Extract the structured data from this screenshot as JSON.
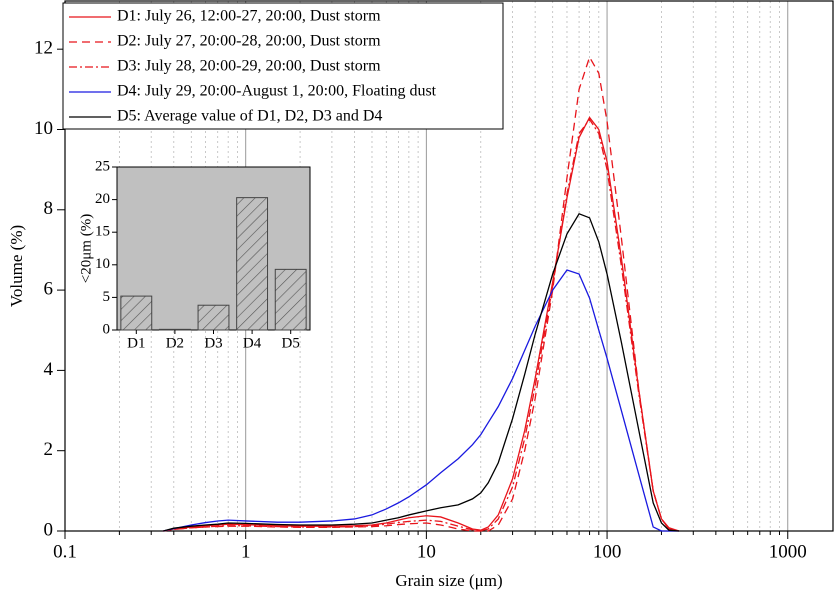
{
  "chart_data": [
    {
      "type": "line",
      "xlabel": "Grain size (μm)",
      "ylabel": "Volume (%)",
      "x": [
        0.35,
        0.4,
        0.5,
        0.6,
        0.7,
        0.8,
        1,
        1.5,
        2,
        3,
        4,
        5,
        6,
        7,
        8,
        10,
        12,
        15,
        18,
        20,
        22,
        25,
        30,
        35,
        40,
        50,
        60,
        70,
        80,
        90,
        100,
        120,
        150,
        180,
        200,
        220,
        250
      ],
      "xlim": [
        0.1,
        1780
      ],
      "xticks": [
        0.1,
        1,
        10,
        100,
        1000
      ],
      "log_x": true,
      "ylim": [
        0,
        13.2
      ],
      "yticks": [
        0,
        2,
        4,
        6,
        8,
        10,
        12
      ],
      "grid": true,
      "legend": "upper left",
      "series": [
        {
          "name": "D1: July 26, 12:00-27, 20:00, Dust storm",
          "color": "#e8141b",
          "style": "solid",
          "values": [
            0,
            0.05,
            0.1,
            0.13,
            0.15,
            0.17,
            0.16,
            0.13,
            0.12,
            0.12,
            0.13,
            0.15,
            0.2,
            0.27,
            0.33,
            0.38,
            0.35,
            0.2,
            0.05,
            0.02,
            0.1,
            0.4,
            1.3,
            2.5,
            3.8,
            6.2,
            8.3,
            9.8,
            10.3,
            10.0,
            9.2,
            6.8,
            3.5,
            1.0,
            0.3,
            0.08,
            0
          ]
        },
        {
          "name": "D2: July 27, 20:00-28, 20:00, Dust storm",
          "color": "#e8141b",
          "style": "dashed",
          "values": [
            0,
            0.04,
            0.08,
            0.1,
            0.11,
            0.12,
            0.12,
            0.1,
            0.09,
            0.09,
            0.1,
            0.11,
            0.13,
            0.16,
            0.18,
            0.2,
            0.15,
            0.05,
            0,
            0,
            0,
            0.15,
            0.8,
            2.0,
            3.3,
            6.0,
            8.8,
            11.0,
            11.8,
            11.4,
            10.2,
            7.3,
            3.5,
            1.0,
            0.3,
            0.05,
            0
          ]
        },
        {
          "name": "D3: July 28, 20:00-29, 20:00, Dust storm",
          "color": "#e8141b",
          "style": "dashdot",
          "values": [
            0,
            0.04,
            0.08,
            0.1,
            0.12,
            0.13,
            0.13,
            0.11,
            0.1,
            0.1,
            0.11,
            0.13,
            0.17,
            0.21,
            0.24,
            0.27,
            0.24,
            0.12,
            0.03,
            0.01,
            0.05,
            0.3,
            1.1,
            2.3,
            3.6,
            6.1,
            8.4,
            9.9,
            10.25,
            9.9,
            9.0,
            6.6,
            3.4,
            1.0,
            0.3,
            0.05,
            0
          ]
        },
        {
          "name": "D4: July 29, 20:00-August 1, 20:00, Floating dust",
          "color": "#1a1ae0",
          "style": "solid",
          "values": [
            0,
            0.06,
            0.15,
            0.21,
            0.25,
            0.27,
            0.25,
            0.22,
            0.22,
            0.25,
            0.3,
            0.4,
            0.55,
            0.7,
            0.85,
            1.15,
            1.45,
            1.8,
            2.15,
            2.4,
            2.7,
            3.1,
            3.8,
            4.5,
            5.1,
            6.0,
            6.5,
            6.4,
            5.8,
            5.0,
            4.3,
            3.0,
            1.4,
            0.1,
            0,
            0,
            0
          ]
        },
        {
          "name": "D5: Average value of D1, D2, D3 and D4",
          "color": "#000000",
          "style": "solid",
          "values": [
            0,
            0.07,
            0.12,
            0.15,
            0.17,
            0.2,
            0.19,
            0.16,
            0.15,
            0.15,
            0.17,
            0.2,
            0.27,
            0.33,
            0.4,
            0.5,
            0.58,
            0.65,
            0.8,
            0.95,
            1.2,
            1.7,
            2.8,
            3.9,
            4.9,
            6.4,
            7.4,
            7.9,
            7.8,
            7.2,
            6.4,
            4.7,
            2.5,
            0.7,
            0.2,
            0.02,
            0
          ]
        }
      ]
    },
    {
      "type": "bar",
      "ylabel": "<20μm (%)",
      "categories": [
        "D1",
        "D2",
        "D3",
        "D4",
        "D5"
      ],
      "values": [
        5.2,
        0.1,
        3.8,
        20.3,
        9.3
      ],
      "ylim": [
        0,
        25
      ],
      "yticks": [
        0,
        5,
        10,
        15,
        20,
        25
      ],
      "color": "#c0c0c0",
      "hatch": true
    }
  ]
}
